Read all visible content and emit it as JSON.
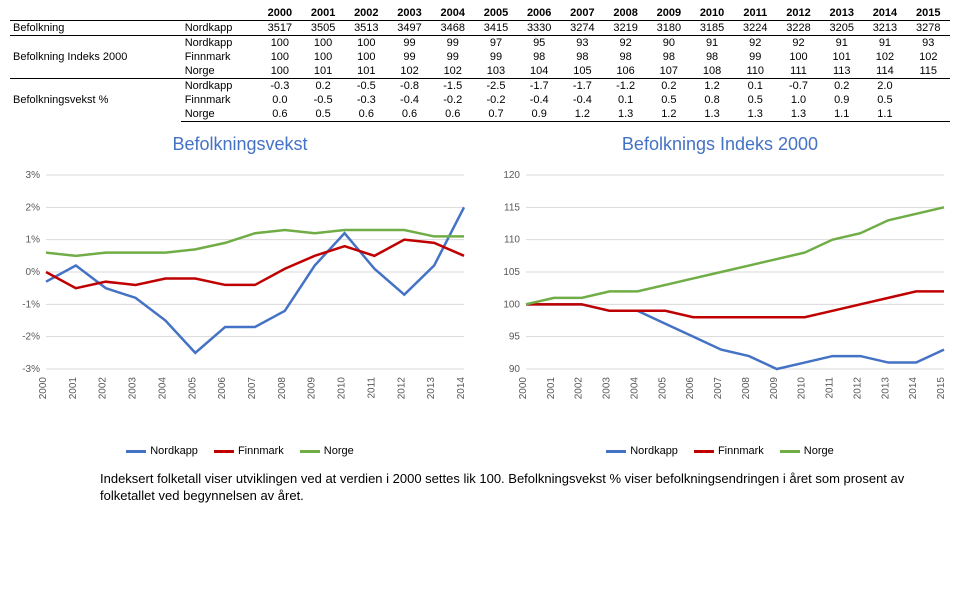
{
  "years": [
    "2000",
    "2001",
    "2002",
    "2003",
    "2004",
    "2005",
    "2006",
    "2007",
    "2008",
    "2009",
    "2010",
    "2011",
    "2012",
    "2013",
    "2014",
    "2015"
  ],
  "table": {
    "groups": [
      {
        "label": "Befolkning",
        "rows": [
          {
            "region": "Nordkapp",
            "values": [
              "3517",
              "3505",
              "3513",
              "3497",
              "3468",
              "3415",
              "3330",
              "3274",
              "3219",
              "3180",
              "3185",
              "3224",
              "3228",
              "3205",
              "3213",
              "3278"
            ]
          }
        ]
      },
      {
        "label": "Befolkning Indeks 2000",
        "rows": [
          {
            "region": "Nordkapp",
            "values": [
              "100",
              "100",
              "100",
              "99",
              "99",
              "97",
              "95",
              "93",
              "92",
              "90",
              "91",
              "92",
              "92",
              "91",
              "91",
              "93"
            ]
          },
          {
            "region": "Finnmark",
            "values": [
              "100",
              "100",
              "100",
              "99",
              "99",
              "99",
              "98",
              "98",
              "98",
              "98",
              "98",
              "99",
              "100",
              "101",
              "102",
              "102"
            ]
          },
          {
            "region": "Norge",
            "values": [
              "100",
              "101",
              "101",
              "102",
              "102",
              "103",
              "104",
              "105",
              "106",
              "107",
              "108",
              "110",
              "111",
              "113",
              "114",
              "115"
            ]
          }
        ]
      },
      {
        "label": "Befolkningsvekst %",
        "rows": [
          {
            "region": "Nordkapp",
            "values": [
              "-0.3",
              "0.2",
              "-0.5",
              "-0.8",
              "-1.5",
              "-2.5",
              "-1.7",
              "-1.7",
              "-1.2",
              "0.2",
              "1.2",
              "0.1",
              "-0.7",
              "0.2",
              "2.0",
              ""
            ]
          },
          {
            "region": "Finnmark",
            "values": [
              "0.0",
              "-0.5",
              "-0.3",
              "-0.4",
              "-0.2",
              "-0.2",
              "-0.4",
              "-0.4",
              "0.1",
              "0.5",
              "0.8",
              "0.5",
              "1.0",
              "0.9",
              "0.5",
              ""
            ]
          },
          {
            "region": "Norge",
            "values": [
              "0.6",
              "0.5",
              "0.6",
              "0.6",
              "0.6",
              "0.7",
              "0.9",
              "1.2",
              "1.3",
              "1.2",
              "1.3",
              "1.3",
              "1.3",
              "1.1",
              "1.1",
              ""
            ]
          }
        ]
      }
    ]
  },
  "chart_vekst": {
    "title": "Befolkningsvekst",
    "type": "line",
    "ylim": [
      -3,
      3
    ],
    "ytick_step": 1,
    "ysuffix": "%",
    "x_categories": [
      "2000",
      "2001",
      "2002",
      "2003",
      "2004",
      "2005",
      "2006",
      "2007",
      "2008",
      "2009",
      "2010",
      "2011",
      "2012",
      "2013",
      "2014"
    ],
    "series": [
      {
        "name": "Nordkapp",
        "color": "#4472c4",
        "values": [
          -0.3,
          0.2,
          -0.5,
          -0.8,
          -1.5,
          -2.5,
          -1.7,
          -1.7,
          -1.2,
          0.2,
          1.2,
          0.1,
          -0.7,
          0.2,
          2.0
        ]
      },
      {
        "name": "Finnmark",
        "color": "#c00000",
        "values": [
          0.0,
          -0.5,
          -0.3,
          -0.4,
          -0.2,
          -0.2,
          -0.4,
          -0.4,
          0.1,
          0.5,
          0.8,
          0.5,
          1.0,
          0.9,
          0.5
        ]
      },
      {
        "name": "Norge",
        "color": "#70ad47",
        "values": [
          0.6,
          0.5,
          0.6,
          0.6,
          0.6,
          0.7,
          0.9,
          1.2,
          1.3,
          1.2,
          1.3,
          1.3,
          1.3,
          1.1,
          1.1
        ]
      }
    ],
    "grid_color": "#d9d9d9",
    "background_color": "#ffffff",
    "line_width": 2.5
  },
  "chart_indeks": {
    "title": "Befolknings Indeks 2000",
    "type": "line",
    "ylim": [
      90,
      120
    ],
    "ytick_step": 5,
    "ysuffix": "",
    "x_categories": [
      "2000",
      "2001",
      "2002",
      "2003",
      "2004",
      "2005",
      "2006",
      "2007",
      "2008",
      "2009",
      "2010",
      "2011",
      "2012",
      "2013",
      "2014",
      "2015"
    ],
    "series": [
      {
        "name": "Nordkapp",
        "color": "#4472c4",
        "values": [
          100,
          100,
          100,
          99,
          99,
          97,
          95,
          93,
          92,
          90,
          91,
          92,
          92,
          91,
          91,
          93
        ]
      },
      {
        "name": "Finnmark",
        "color": "#c00000",
        "values": [
          100,
          100,
          100,
          99,
          99,
          99,
          98,
          98,
          98,
          98,
          98,
          99,
          100,
          101,
          102,
          102
        ]
      },
      {
        "name": "Norge",
        "color": "#70ad47",
        "values": [
          100,
          101,
          101,
          102,
          102,
          103,
          104,
          105,
          106,
          107,
          108,
          110,
          111,
          113,
          114,
          115
        ]
      }
    ],
    "grid_color": "#d9d9d9",
    "background_color": "#ffffff",
    "line_width": 2.5
  },
  "footer": "Indeksert folketall viser utviklingen ved at verdien i 2000 settes lik 100. Befolkningsvekst % viser befolkningsendringen i året som prosent av folketallet ved begynnelsen av året."
}
